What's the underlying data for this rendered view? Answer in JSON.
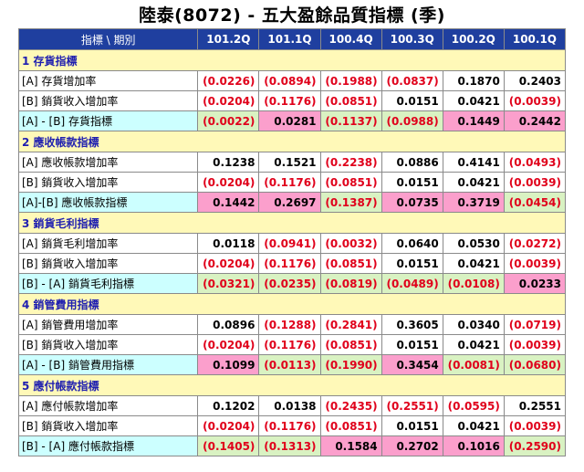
{
  "title": "陸泰(8072) -  五大盈餘品質指標 (季)",
  "header": {
    "label": "指標 \\ 期別",
    "periods": [
      "101.2Q",
      "101.1Q",
      "100.4Q",
      "100.3Q",
      "100.2Q",
      "100.1Q"
    ]
  },
  "sections": [
    {
      "title": "1 存貨指標",
      "rows": [
        {
          "label": "[A] 存貨增加率",
          "values": [
            "(0.0226)",
            "(0.0894)",
            "(0.1988)",
            "(0.0837)",
            "0.1870",
            "0.2403"
          ]
        },
        {
          "label": "[B] 銷貨收入增加率",
          "values": [
            "(0.0204)",
            "(0.1176)",
            "(0.0851)",
            "0.0151",
            "0.0421",
            "(0.0039)"
          ]
        },
        {
          "label": "[A] - [B] 存貨指標",
          "values": [
            "(0.0022)",
            "0.0281",
            "(0.1137)",
            "(0.0988)",
            "0.1449",
            "0.2442"
          ],
          "highlight": [
            "green",
            "pink",
            "green",
            "green",
            "pink",
            "pink"
          ]
        }
      ]
    },
    {
      "title": "2 應收帳款指標",
      "rows": [
        {
          "label": "[A] 應收帳款增加率",
          "values": [
            "0.1238",
            "0.1521",
            "(0.2238)",
            "0.0886",
            "0.4141",
            "(0.0493)"
          ]
        },
        {
          "label": "[B] 銷貨收入增加率",
          "values": [
            "(0.0204)",
            "(0.1176)",
            "(0.0851)",
            "0.0151",
            "0.0421",
            "(0.0039)"
          ]
        },
        {
          "label": "[A]-[B] 應收帳款指標",
          "values": [
            "0.1442",
            "0.2697",
            "(0.1387)",
            "0.0735",
            "0.3719",
            "(0.0454)"
          ],
          "highlight": [
            "pink",
            "pink",
            "green",
            "pink",
            "pink",
            "green"
          ]
        }
      ]
    },
    {
      "title": "3 銷貨毛利指標",
      "rows": [
        {
          "label": "[A] 銷貨毛利增加率",
          "values": [
            "0.0118",
            "(0.0941)",
            "(0.0032)",
            "0.0640",
            "0.0530",
            "(0.0272)"
          ]
        },
        {
          "label": "[B] 銷貨收入增加率",
          "values": [
            "(0.0204)",
            "(0.1176)",
            "(0.0851)",
            "0.0151",
            "0.0421",
            "(0.0039)"
          ]
        },
        {
          "label": "[B] - [A] 銷貨毛利指標",
          "values": [
            "(0.0321)",
            "(0.0235)",
            "(0.0819)",
            "(0.0489)",
            "(0.0108)",
            "0.0233"
          ],
          "highlight": [
            "green",
            "green",
            "green",
            "green",
            "green",
            "pink"
          ]
        }
      ]
    },
    {
      "title": "4 銷管費用指標",
      "rows": [
        {
          "label": "[A] 銷管費用增加率",
          "values": [
            "0.0896",
            "(0.1288)",
            "(0.2841)",
            "0.3605",
            "0.0340",
            "(0.0719)"
          ]
        },
        {
          "label": "[B] 銷貨收入增加率",
          "values": [
            "(0.0204)",
            "(0.1176)",
            "(0.0851)",
            "0.0151",
            "0.0421",
            "(0.0039)"
          ]
        },
        {
          "label": "[A] - [B] 銷管費用指標",
          "values": [
            "0.1099",
            "(0.0113)",
            "(0.1990)",
            "0.3454",
            "(0.0081)",
            "(0.0680)"
          ],
          "highlight": [
            "pink",
            "green",
            "green",
            "pink",
            "green",
            "green"
          ]
        }
      ]
    },
    {
      "title": "5 應付帳款指標",
      "rows": [
        {
          "label": "[A] 應付帳款增加率",
          "values": [
            "0.1202",
            "0.0138",
            "(0.2435)",
            "(0.2551)",
            "(0.0595)",
            "0.2551"
          ]
        },
        {
          "label": "[B] 銷貨收入增加率",
          "values": [
            "(0.0204)",
            "(0.1176)",
            "(0.0851)",
            "0.0151",
            "0.0421",
            "(0.0039)"
          ]
        },
        {
          "label": "[B] - [A] 應付帳款指標",
          "values": [
            "(0.1405)",
            "(0.1313)",
            "0.1584",
            "0.2702",
            "0.1016",
            "(0.2590)"
          ],
          "highlight": [
            "green",
            "green",
            "pink",
            "pink",
            "pink",
            "green"
          ]
        }
      ]
    }
  ],
  "colors": {
    "header_bg": "#1f3f9f",
    "section_bg": "#fff9b8",
    "index_label_bg": "#ccffff",
    "favorable_bg": "#d9f2c2",
    "unfavorable_bg": "#fb9fcc",
    "negative_text": "#e0001b"
  }
}
